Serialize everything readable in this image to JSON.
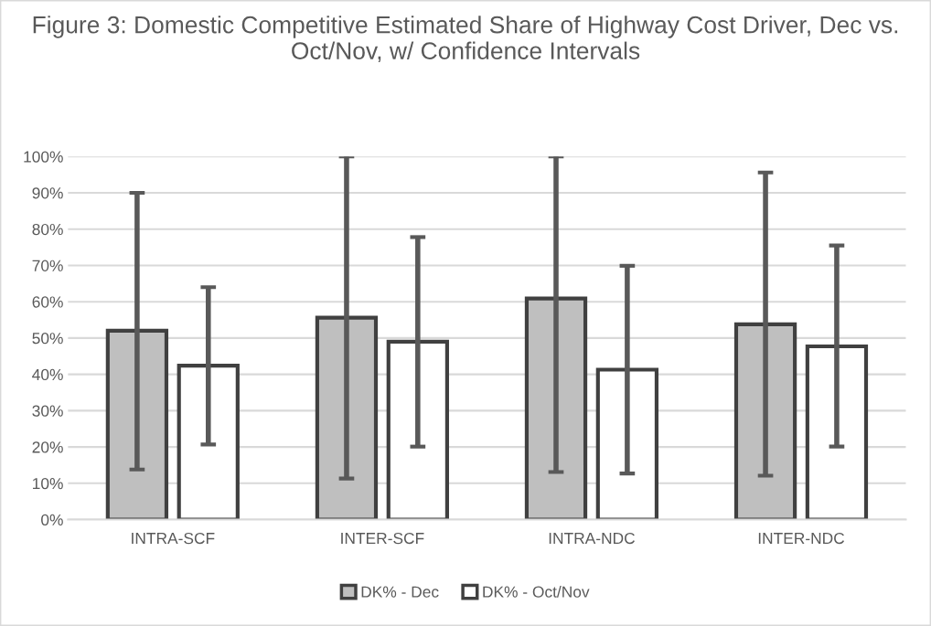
{
  "chart_data": {
    "type": "bar",
    "title": "Figure 3: Domestic Competitive Estimated Share of Highway Cost Driver, Dec vs. Oct/Nov, w/ Confidence Intervals",
    "categories": [
      "INTRA-SCF",
      "INTER-SCF",
      "INTRA-NDC",
      "INTER-NDC"
    ],
    "series": [
      {
        "name": "DK% - Dec",
        "color": "#bfbfbf",
        "values": [
          52,
          55.6,
          60.9,
          53.8
        ],
        "errors": [
          [
            13.8,
            90
          ],
          [
            11.3,
            100
          ],
          [
            13.1,
            100
          ],
          [
            12.1,
            95.6
          ]
        ]
      },
      {
        "name": "DK% - Oct/Nov",
        "color": "#ffffff",
        "values": [
          42.4,
          49,
          41.3,
          47.7
        ],
        "errors": [
          [
            20.7,
            64
          ],
          [
            20.1,
            77.8
          ],
          [
            12.7,
            69.9
          ],
          [
            20.1,
            75.5
          ]
        ]
      }
    ],
    "ylim": [
      0,
      100
    ],
    "yticks": [
      {
        "value": 0,
        "label": "0%"
      },
      {
        "value": 10,
        "label": "10%"
      },
      {
        "value": 20,
        "label": "20%"
      },
      {
        "value": 30,
        "label": "30%"
      },
      {
        "value": 40,
        "label": "40%"
      },
      {
        "value": 50,
        "label": "50%"
      },
      {
        "value": 60,
        "label": "60%"
      },
      {
        "value": 70,
        "label": "70%"
      },
      {
        "value": 80,
        "label": "80%"
      },
      {
        "value": 90,
        "label": "90%"
      },
      {
        "value": 100,
        "label": "100%"
      }
    ],
    "grid": "y",
    "legend": "bottom"
  }
}
